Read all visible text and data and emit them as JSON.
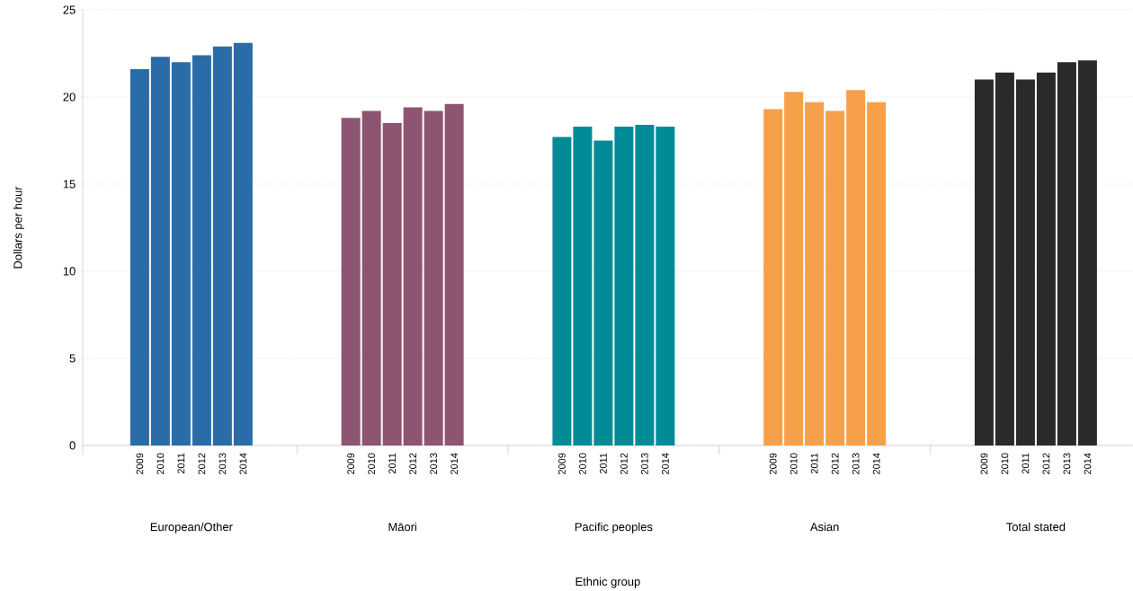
{
  "chart_data": {
    "type": "bar",
    "xlabel": "Ethnic group",
    "ylabel": "Dollars per hour",
    "categories": [
      "European/Other",
      "Māori",
      "Pacific peoples",
      "Asian",
      "Total stated"
    ],
    "series": [
      {
        "name": "2009",
        "colors": [
          "#2a6ca8",
          "#8e5572",
          "#008b96",
          "#f7a04a",
          "#2a2a2a"
        ],
        "values": [
          21.6,
          18.8,
          17.7,
          19.3,
          21.0
        ]
      },
      {
        "name": "2010",
        "colors": [
          "#2a6ca8",
          "#8e5572",
          "#008b96",
          "#f7a04a",
          "#2a2a2a"
        ],
        "values": [
          22.3,
          19.2,
          18.3,
          20.3,
          21.4
        ]
      },
      {
        "name": "2011",
        "colors": [
          "#2a6ca8",
          "#8e5572",
          "#008b96",
          "#f7a04a",
          "#2a2a2a"
        ],
        "values": [
          22.0,
          18.5,
          17.5,
          19.7,
          21.0
        ]
      },
      {
        "name": "2012",
        "colors": [
          "#2a6ca8",
          "#8e5572",
          "#008b96",
          "#f7a04a",
          "#2a2a2a"
        ],
        "values": [
          22.4,
          19.4,
          18.3,
          19.2,
          21.4
        ]
      },
      {
        "name": "2013",
        "colors": [
          "#2a6ca8",
          "#8e5572",
          "#008b96",
          "#f7a04a",
          "#2a2a2a"
        ],
        "values": [
          22.9,
          19.2,
          18.4,
          20.4,
          22.0
        ]
      },
      {
        "name": "2014",
        "colors": [
          "#2a6ca8",
          "#8e5572",
          "#008b96",
          "#f7a04a",
          "#2a2a2a"
        ],
        "values": [
          23.1,
          19.6,
          18.3,
          19.7,
          22.1
        ]
      }
    ],
    "ylim": [
      0,
      25
    ],
    "yticks": [
      0,
      5,
      10,
      15,
      20,
      25
    ],
    "grid": "y"
  }
}
